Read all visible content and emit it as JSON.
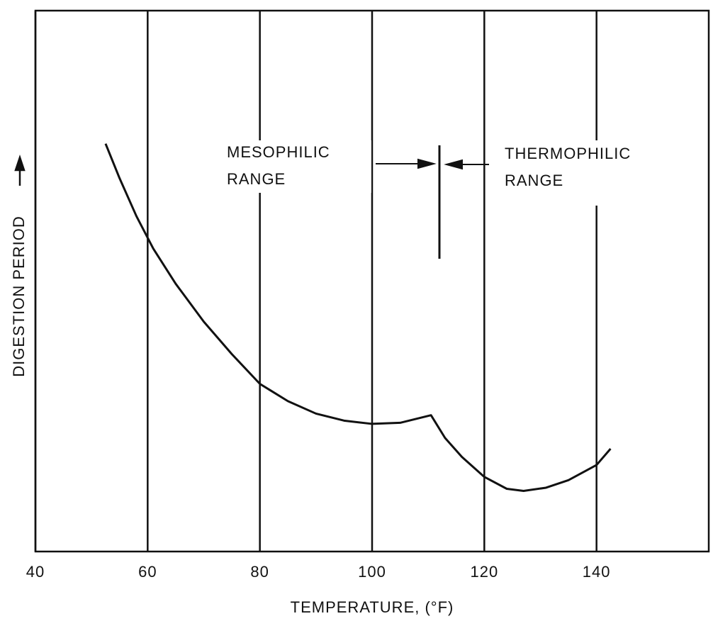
{
  "chart_data": {
    "type": "line",
    "x_label": "TEMPERATURE, (°F)",
    "y_label": "DIGESTION PERIOD",
    "xlim": [
      40,
      160
    ],
    "xticks": [
      40,
      60,
      80,
      100,
      120,
      140
    ],
    "ylim": [
      0,
      100
    ],
    "grid": true,
    "color": "#111111",
    "x": [
      52.5,
      55,
      58,
      61,
      65,
      70,
      75,
      80,
      85,
      90,
      95,
      100,
      105,
      110.5,
      113,
      116,
      120,
      124,
      127,
      131,
      135,
      140,
      142.5
    ],
    "values": [
      75.4,
      69,
      62,
      56,
      49.5,
      42.5,
      36.5,
      31,
      27.8,
      25.5,
      24.2,
      23.6,
      23.8,
      25.2,
      21,
      17.5,
      13.8,
      11.6,
      11.2,
      11.8,
      13.2,
      16,
      19
    ],
    "boundary": 112,
    "annotations": [
      [
        "MESOPHILIC",
        "RANGE"
      ],
      [
        "THERMOPHILIC",
        "RANGE"
      ]
    ]
  }
}
